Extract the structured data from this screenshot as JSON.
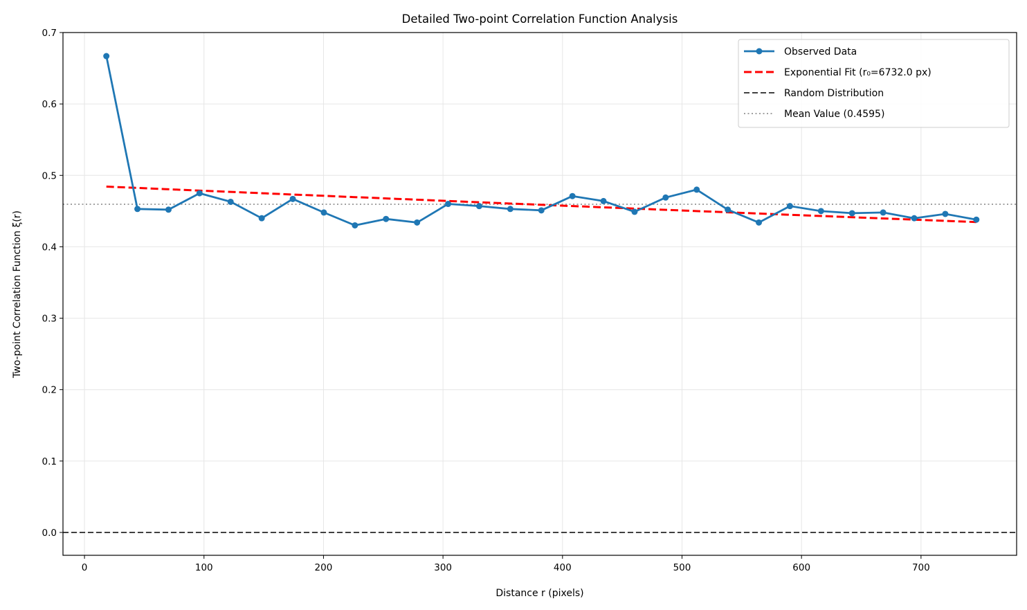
{
  "chart_data": {
    "type": "line",
    "title": "Detailed Two-point Correlation Function Analysis",
    "xlabel": "Distance r (pixels)",
    "ylabel": "Two-point Correlation Function ξ(r)",
    "xlim": [
      -18,
      780
    ],
    "ylim": [
      -0.032,
      0.7
    ],
    "xticks": [
      0,
      100,
      200,
      300,
      400,
      500,
      600,
      700
    ],
    "yticks": [
      0.0,
      0.1,
      0.2,
      0.3,
      0.4,
      0.5,
      0.6,
      0.7
    ],
    "xtick_labels": [
      "0",
      "100",
      "200",
      "300",
      "400",
      "500",
      "600",
      "700"
    ],
    "ytick_labels": [
      "0.0",
      "0.1",
      "0.2",
      "0.3",
      "0.4",
      "0.5",
      "0.6",
      "0.7"
    ],
    "grid": true,
    "legend_position": "top-right",
    "series": [
      {
        "name": "Observed Data",
        "style": "solid-marker",
        "color": "#1f77b4",
        "x": [
          18.3,
          44.3,
          70.3,
          96.3,
          122.3,
          148.3,
          174.3,
          200.3,
          226.3,
          252.3,
          278.3,
          304.3,
          330.3,
          356.3,
          382.3,
          408.3,
          434.3,
          460.3,
          486.3,
          512.3,
          538.3,
          564.3,
          590.3,
          616.3,
          642.3,
          668.3,
          694.3,
          720.3,
          746.3
        ],
        "y": [
          0.667,
          0.453,
          0.452,
          0.475,
          0.463,
          0.44,
          0.467,
          0.448,
          0.43,
          0.439,
          0.434,
          0.46,
          0.457,
          0.453,
          0.451,
          0.471,
          0.464,
          0.449,
          0.469,
          0.48,
          0.452,
          0.434,
          0.457,
          0.45,
          0.447,
          0.448,
          0.44,
          0.446,
          0.438
        ]
      },
      {
        "name": "Exponential Fit (r₀=6732.0 px)",
        "style": "dashed",
        "color": "#ff0000",
        "amplitude": 0.4856,
        "r0": 6732.0,
        "x_range": [
          18.3,
          746.3
        ]
      },
      {
        "name": "Random Distribution",
        "style": "dashed",
        "color": "#404040",
        "y": 0.0
      },
      {
        "name": "Mean Value (0.4595)",
        "style": "dotted",
        "color": "#a0a0a0",
        "y": 0.4595
      }
    ]
  }
}
